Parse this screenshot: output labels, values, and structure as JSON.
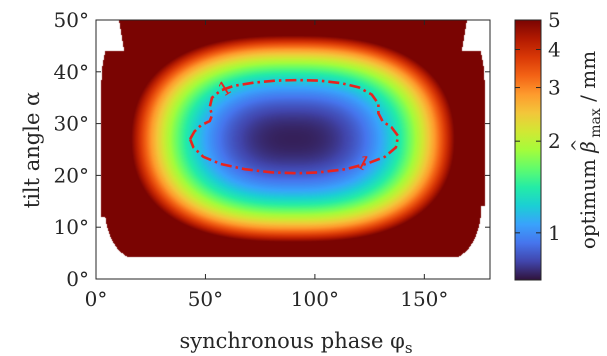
{
  "chart_data": {
    "type": "heatmap",
    "title": "",
    "xlabel": "synchronous phase φ",
    "xlabel_sub": "s",
    "ylabel": "tilt angle α",
    "xlim": [
      0,
      180
    ],
    "ylim": [
      0,
      50
    ],
    "x_ticks": [
      {
        "value": 0,
        "label": "0°"
      },
      {
        "value": 50,
        "label": "50°"
      },
      {
        "value": 100,
        "label": "100°"
      },
      {
        "value": 150,
        "label": "150°"
      }
    ],
    "y_ticks": [
      {
        "value": 0,
        "label": "0°"
      },
      {
        "value": 10,
        "label": "10°"
      },
      {
        "value": 20,
        "label": "20°"
      },
      {
        "value": 30,
        "label": "30°"
      },
      {
        "value": 40,
        "label": "40°"
      },
      {
        "value": 50,
        "label": "50°"
      }
    ],
    "colorbar": {
      "label_pre": "optimum ",
      "label_symbol": "β",
      "label_sub": "max",
      "label_post": " / mm",
      "scale": "log",
      "range": [
        0.7,
        5
      ],
      "ticks": [
        {
          "value": 1,
          "label": "1"
        },
        {
          "value": 2,
          "label": "2"
        },
        {
          "value": 3,
          "label": "3"
        },
        {
          "value": 4,
          "label": "4"
        },
        {
          "value": 5,
          "label": "5"
        }
      ],
      "colormap": [
        "#30123b",
        "#4145ab",
        "#4675ed",
        "#39a2fc",
        "#1bcfd4",
        "#24eca6",
        "#61fc6c",
        "#a4fc3b",
        "#d1e834",
        "#f3c63a",
        "#fe9b2d",
        "#f36315",
        "#d93806",
        "#b11901",
        "#7a0402"
      ]
    },
    "field": {
      "phi_min": 0,
      "phi_max": 180,
      "alpha_min": 0,
      "alpha_max": 50,
      "min_value": 0.72,
      "min_at_phi": 90,
      "min_at_alpha": 27
    },
    "contour": {
      "level": 1,
      "label": "1",
      "color": "#e8231f",
      "line_style": "dash-dot",
      "points": [
        [
          43,
          27
        ],
        [
          45,
          28.5
        ],
        [
          48,
          29.7
        ],
        [
          52,
          30.5
        ],
        [
          53,
          31.6
        ],
        [
          52,
          33.2
        ],
        [
          53,
          35
        ],
        [
          57,
          36.4
        ],
        [
          63,
          37.3
        ],
        [
          72,
          37.9
        ],
        [
          82,
          38.3
        ],
        [
          92,
          38.4
        ],
        [
          102,
          38.3
        ],
        [
          112,
          37.8
        ],
        [
          120,
          37
        ],
        [
          126,
          35.6
        ],
        [
          129,
          33.8
        ],
        [
          129,
          32
        ],
        [
          131,
          30.4
        ],
        [
          135,
          29.3
        ],
        [
          138,
          27.6
        ],
        [
          137,
          25.4
        ],
        [
          132,
          23.6
        ],
        [
          124,
          22.3
        ],
        [
          114,
          21.2
        ],
        [
          102,
          20.6
        ],
        [
          92,
          20.4
        ],
        [
          80,
          20.6
        ],
        [
          68,
          21.2
        ],
        [
          57,
          22.2
        ],
        [
          49,
          23.6
        ],
        [
          44.5,
          25.4
        ],
        [
          43,
          27
        ]
      ]
    },
    "grid": false,
    "legend": "none"
  }
}
